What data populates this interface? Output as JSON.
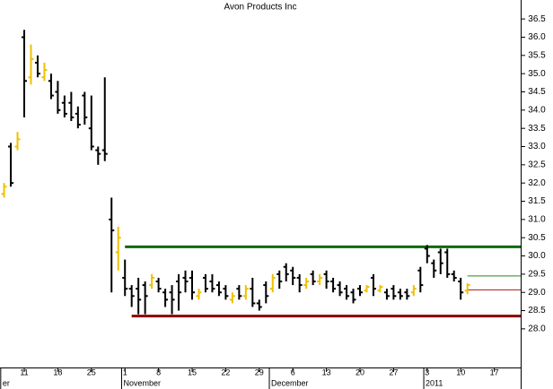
{
  "chart_data": {
    "type": "ohlc",
    "title": "Avon Products Inc",
    "categories": [
      null,
      null,
      null,
      "11",
      null,
      null,
      null,
      null,
      "18",
      null,
      null,
      null,
      null,
      "25",
      null,
      null,
      null,
      null,
      "1",
      null,
      null,
      null,
      null,
      "8",
      null,
      null,
      null,
      null,
      "15",
      null,
      null,
      null,
      null,
      "22",
      null,
      null,
      null,
      null,
      "29",
      null,
      null,
      null,
      null,
      "6",
      null,
      null,
      null,
      null,
      "13",
      null,
      null,
      null,
      null,
      "20",
      null,
      null,
      null,
      null,
      "27",
      null,
      null,
      null,
      null,
      "3",
      null,
      null,
      null,
      null,
      "10",
      null,
      null,
      null,
      null,
      "17",
      null,
      null,
      null
    ],
    "months": [
      {
        "label": "er",
        "at": 0
      },
      {
        "label": "November",
        "at": 18
      },
      {
        "label": "December",
        "at": 40
      },
      {
        "label": "2011",
        "at": 63
      }
    ],
    "open": [
      31.7,
      33.0,
      33.0,
      36.0,
      34.9,
      35.3,
      34.9,
      34.8,
      34.5,
      34.2,
      34.2,
      33.9,
      34.4,
      33.5,
      32.9,
      32.9,
      31.0,
      30.1,
      29.4,
      29.1,
      29.1,
      29.2,
      29.2,
      29.3,
      29.0,
      29.0,
      29.3,
      29.4,
      29.4,
      28.9,
      29.4,
      29.3,
      29.2,
      29.1,
      28.8,
      29.1,
      28.9,
      29.1,
      28.7,
      29.2,
      29.1,
      29.5,
      29.7,
      29.6,
      29.4,
      29.2,
      29.5,
      29.3,
      29.5,
      29.3,
      29.2,
      29.1,
      29.0,
      29.1,
      29.05,
      29.4,
      29.05,
      29.0,
      29.1,
      29.0,
      29.0,
      29.0,
      29.6,
      30.2,
      29.8,
      30.1,
      30.1,
      29.5,
      29.3,
      29.05,
      null,
      null,
      null,
      null,
      null,
      null,
      null
    ],
    "high": [
      32.0,
      33.1,
      33.4,
      36.2,
      35.8,
      35.5,
      35.3,
      35.0,
      34.8,
      34.4,
      34.5,
      34.1,
      34.5,
      34.4,
      33.0,
      34.9,
      31.6,
      30.8,
      29.9,
      29.2,
      29.4,
      29.3,
      29.5,
      29.4,
      29.1,
      29.2,
      29.5,
      29.6,
      29.6,
      29.1,
      29.5,
      29.5,
      29.3,
      29.2,
      29.0,
      29.2,
      29.2,
      29.4,
      28.8,
      29.3,
      29.5,
      29.6,
      29.8,
      29.7,
      29.5,
      29.4,
      29.6,
      29.5,
      29.6,
      29.4,
      29.3,
      29.2,
      29.1,
      29.2,
      29.2,
      29.5,
      29.2,
      29.1,
      29.2,
      29.1,
      29.1,
      29.2,
      29.7,
      30.3,
      29.9,
      30.2,
      30.2,
      29.6,
      29.4,
      29.25,
      null,
      null,
      null,
      null,
      null,
      null,
      null
    ],
    "low": [
      31.6,
      31.9,
      32.9,
      33.8,
      34.7,
      34.9,
      34.8,
      34.3,
      33.9,
      33.8,
      33.7,
      33.5,
      33.6,
      32.9,
      32.5,
      32.6,
      29.0,
      29.6,
      28.9,
      28.6,
      28.4,
      28.4,
      29.1,
      29.0,
      28.6,
      28.4,
      28.5,
      29.0,
      28.8,
      28.8,
      29.0,
      29.0,
      28.9,
      28.8,
      28.7,
      28.8,
      28.8,
      28.6,
      28.5,
      28.7,
      29.0,
      29.1,
      29.3,
      29.2,
      29.0,
      29.1,
      29.2,
      29.2,
      29.1,
      29.0,
      28.9,
      28.8,
      28.7,
      28.9,
      29.0,
      28.9,
      29.0,
      28.8,
      28.8,
      28.8,
      28.8,
      28.9,
      29.0,
      29.8,
      29.4,
      29.5,
      29.4,
      29.3,
      28.8,
      28.95,
      null,
      null,
      null,
      null,
      null,
      null,
      null
    ],
    "close": [
      31.9,
      32.0,
      33.2,
      34.8,
      35.4,
      35.0,
      35.1,
      34.4,
      34.0,
      33.9,
      33.8,
      33.6,
      33.8,
      33.0,
      32.8,
      32.8,
      30.7,
      30.5,
      29.1,
      28.9,
      28.8,
      28.9,
      29.4,
      29.1,
      28.8,
      28.8,
      29.0,
      29.3,
      29.0,
      29.0,
      29.1,
      29.1,
      29.0,
      28.9,
      28.9,
      28.9,
      29.1,
      28.7,
      28.6,
      28.9,
      29.4,
      29.3,
      29.5,
      29.4,
      29.2,
      29.3,
      29.3,
      29.4,
      29.3,
      29.1,
      29.0,
      28.9,
      28.8,
      29.0,
      29.15,
      29.1,
      29.15,
      28.9,
      28.9,
      28.9,
      28.9,
      29.1,
      29.2,
      30.0,
      29.6,
      29.8,
      29.5,
      29.4,
      29.0,
      29.2,
      null,
      null,
      null,
      null,
      null,
      null,
      null
    ],
    "up_color": "#f0c000",
    "down_color": "#000000",
    "hlines": [
      {
        "value": 30.25,
        "color": "#0b6a0b",
        "width": 3,
        "from": 18
      },
      {
        "value": 28.35,
        "color": "#8b0000",
        "width": 3,
        "from": 19
      },
      {
        "value": 29.45,
        "color": "#1a8a1a",
        "width": 1,
        "from": 69
      },
      {
        "value": 29.07,
        "color": "#b01010",
        "width": 1,
        "from": 69
      }
    ],
    "ylim": [
      26.94,
      37.02
    ],
    "yticks": [
      {
        "value": 28,
        "label": "28.0"
      },
      28.5,
      {
        "value": 29,
        "label": "29.0"
      },
      29.5,
      {
        "value": 30,
        "label": "30.0"
      },
      30.5,
      {
        "value": 31,
        "label": "31.0"
      },
      31.5,
      {
        "value": 32,
        "label": "32.0"
      },
      32.5,
      {
        "value": 33,
        "label": "33.0"
      },
      33.5,
      {
        "value": 34,
        "label": "34.0"
      },
      34.5,
      {
        "value": 35,
        "label": "35.0"
      },
      35.5,
      {
        "value": 36,
        "label": "36.0"
      },
      36.5
    ]
  }
}
